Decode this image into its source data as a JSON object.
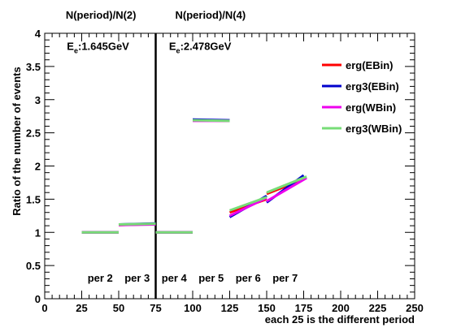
{
  "chart_data": {
    "type": "line",
    "xlabel": "each 25 is the different period",
    "ylabel": "Ratio of the number of events",
    "xlim": [
      0,
      250
    ],
    "ylim": [
      0,
      4
    ],
    "xticks": [
      0,
      25,
      50,
      75,
      100,
      125,
      150,
      175,
      200,
      225,
      250
    ],
    "yticks": [
      0,
      0.5,
      1,
      1.5,
      2,
      2.5,
      3,
      3.5,
      4
    ],
    "grid": false,
    "legend_position": "top-right",
    "top_labels": [
      {
        "text": "N(period)/N(2)",
        "x": 38
      },
      {
        "text": "N(period)/N(4)",
        "x": 112
      }
    ],
    "energy_labels": [
      {
        "prefix": "E",
        "sub": "e",
        "rest": ":1.645GeV",
        "x": 15,
        "y": 3.75
      },
      {
        "prefix": "E",
        "sub": "e",
        "rest": ":2.478GeV",
        "x": 84,
        "y": 3.75
      }
    ],
    "separator_x": 75,
    "period_labels": [
      {
        "text": "per 2",
        "x": 37.5
      },
      {
        "text": "per 3",
        "x": 62.5
      },
      {
        "text": "per 4",
        "x": 87.5
      },
      {
        "text": "per 5",
        "x": 112.5
      },
      {
        "text": "per 6",
        "x": 137.5
      },
      {
        "text": "per 7",
        "x": 162.5
      }
    ],
    "series": [
      {
        "name": "erg(EBin)",
        "color": "#ff0000",
        "segments": [
          [
            [
              25,
              1.0
            ],
            [
              50,
              1.0
            ]
          ],
          [
            [
              50,
              1.11
            ],
            [
              75,
              1.125
            ]
          ],
          [
            [
              75,
              1.0
            ],
            [
              100,
              1.0
            ]
          ],
          [
            [
              100,
              2.69
            ],
            [
              125,
              2.68
            ]
          ],
          [
            [
              125,
              1.3
            ],
            [
              150,
              1.5
            ]
          ],
          [
            [
              150,
              1.58
            ],
            [
              175,
              1.8
            ]
          ]
        ]
      },
      {
        "name": "erg3(EBin)",
        "color": "#0000cc",
        "segments": [
          [
            [
              25,
              1.0
            ],
            [
              50,
              1.0
            ]
          ],
          [
            [
              50,
              1.12
            ],
            [
              75,
              1.135
            ]
          ],
          [
            [
              75,
              1.0
            ],
            [
              100,
              1.0
            ]
          ],
          [
            [
              100,
              2.7
            ],
            [
              125,
              2.69
            ]
          ],
          [
            [
              125,
              1.23
            ],
            [
              150,
              1.55
            ]
          ],
          [
            [
              150,
              1.45
            ],
            [
              175,
              1.86
            ]
          ]
        ]
      },
      {
        "name": "erg(WBin)",
        "color": "#ee00ee",
        "segments": [
          [
            [
              25,
              1.0
            ],
            [
              50,
              1.0
            ]
          ],
          [
            [
              50,
              1.11
            ],
            [
              75,
              1.12
            ]
          ],
          [
            [
              75,
              1.0
            ],
            [
              100,
              1.0
            ]
          ],
          [
            [
              100,
              2.68
            ],
            [
              125,
              2.68
            ]
          ],
          [
            [
              125,
              1.25
            ],
            [
              150,
              1.52
            ]
          ],
          [
            [
              150,
              1.47
            ],
            [
              177,
              1.82
            ]
          ]
        ]
      },
      {
        "name": "erg3(WBin)",
        "color": "#77dd77",
        "segments": [
          [
            [
              25,
              1.0
            ],
            [
              50,
              1.0
            ]
          ],
          [
            [
              50,
              1.12
            ],
            [
              75,
              1.13
            ]
          ],
          [
            [
              75,
              1.0
            ],
            [
              100,
              1.0
            ]
          ],
          [
            [
              100,
              2.69
            ],
            [
              125,
              2.68
            ]
          ],
          [
            [
              125,
              1.33
            ],
            [
              150,
              1.53
            ]
          ],
          [
            [
              150,
              1.6
            ],
            [
              177,
              1.84
            ]
          ]
        ]
      }
    ]
  }
}
